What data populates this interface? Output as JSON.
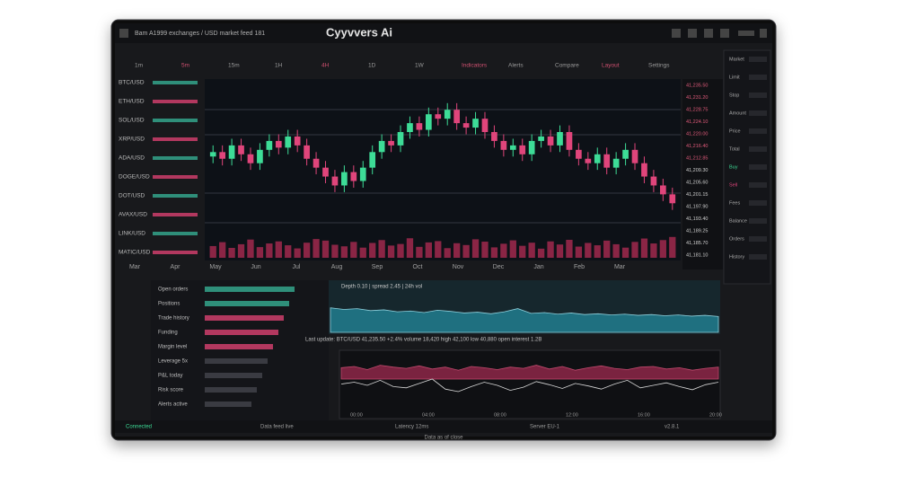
{
  "header": {
    "title": "Cyyvvers Ai",
    "breadcrumb": "Bam A1999 exchanges / USD market feed 181"
  },
  "toolbar": [
    "1m",
    "5m",
    "15m",
    "1H",
    "4H",
    "1D",
    "1W",
    "Indicators",
    "Alerts",
    "Compare",
    "Layout",
    "Settings"
  ],
  "sidebar": [
    "BTC/USD",
    "ETH/USD",
    "SOL/USD",
    "XRP/USD",
    "ADA/USD",
    "DOGE/USD",
    "DOT/USD",
    "AVAX/USD",
    "LINK/USD",
    "MATIC/USD"
  ],
  "chart": {
    "ylim": [
      20,
      85
    ],
    "candles": [
      [
        53,
        58,
        50,
        55
      ],
      [
        55,
        58,
        49,
        52
      ],
      [
        52,
        61,
        49,
        58
      ],
      [
        58,
        61,
        51,
        54
      ],
      [
        54,
        57,
        47,
        50
      ],
      [
        50,
        59,
        47,
        56
      ],
      [
        56,
        63,
        53,
        60
      ],
      [
        60,
        63,
        54,
        57
      ],
      [
        57,
        65,
        54,
        62
      ],
      [
        62,
        65,
        55,
        58
      ],
      [
        58,
        61,
        49,
        52
      ],
      [
        52,
        55,
        45,
        48
      ],
      [
        48,
        51,
        41,
        44
      ],
      [
        44,
        47,
        37,
        40
      ],
      [
        40,
        49,
        37,
        46
      ],
      [
        46,
        49,
        39,
        42
      ],
      [
        42,
        51,
        39,
        48
      ],
      [
        48,
        58,
        45,
        55
      ],
      [
        55,
        63,
        52,
        60
      ],
      [
        60,
        63,
        55,
        58
      ],
      [
        58,
        67,
        55,
        64
      ],
      [
        64,
        71,
        61,
        68
      ],
      [
        68,
        71,
        62,
        65
      ],
      [
        65,
        75,
        62,
        72
      ],
      [
        72,
        75,
        67,
        70
      ],
      [
        70,
        77,
        67,
        74
      ],
      [
        74,
        77,
        65,
        68
      ],
      [
        68,
        71,
        63,
        66
      ],
      [
        66,
        73,
        63,
        70
      ],
      [
        70,
        73,
        61,
        64
      ],
      [
        64,
        67,
        57,
        60
      ],
      [
        60,
        63,
        53,
        56
      ],
      [
        56,
        61,
        53,
        58
      ],
      [
        58,
        61,
        51,
        54
      ],
      [
        54,
        63,
        51,
        60
      ],
      [
        60,
        65,
        57,
        62
      ],
      [
        62,
        65,
        55,
        58
      ],
      [
        58,
        67,
        55,
        64
      ],
      [
        64,
        67,
        53,
        56
      ],
      [
        56,
        59,
        49,
        52
      ],
      [
        52,
        55,
        47,
        50
      ],
      [
        50,
        57,
        47,
        54
      ],
      [
        54,
        57,
        45,
        48
      ],
      [
        48,
        55,
        45,
        52
      ],
      [
        52,
        59,
        49,
        56
      ],
      [
        56,
        59,
        47,
        50
      ],
      [
        50,
        53,
        41,
        44
      ],
      [
        44,
        47,
        37,
        40
      ],
      [
        40,
        43,
        33,
        36
      ],
      [
        36,
        39,
        29,
        32
      ]
    ],
    "volume": [
      45,
      60,
      38,
      52,
      70,
      41,
      55,
      63,
      48,
      36,
      58,
      72,
      66,
      50,
      44,
      61,
      39,
      57,
      68,
      47,
      53,
      75,
      42,
      59,
      64,
      37,
      56,
      49,
      71,
      62,
      40,
      54,
      67,
      46,
      58,
      35,
      63,
      51,
      69,
      43,
      57,
      48,
      66,
      52,
      39,
      61,
      74,
      55,
      68,
      80
    ],
    "vlim": [
      0,
      100
    ],
    "xlabels": [
      "Mar",
      "Apr",
      "May",
      "Jun",
      "Jul",
      "Aug",
      "Sep",
      "Oct",
      "Nov",
      "Dec",
      "Jan",
      "Feb",
      "Mar"
    ]
  },
  "order_book": [
    "41,235.50",
    "41,231.20",
    "41,228.75",
    "41,224.10",
    "41,220.00",
    "41,216.40",
    "41,212.85",
    "41,209.30",
    "41,205.60",
    "41,201.15",
    "41,197.90",
    "41,193.40",
    "41,189.25",
    "41,185.70",
    "41,181.10"
  ],
  "side_panel": [
    "Market",
    "Limit",
    "Stop",
    "Amount",
    "Price",
    "Total",
    "Buy",
    "Sell",
    "Fees",
    "Balance",
    "Orders",
    "History"
  ],
  "lower_table": [
    "Open orders",
    "Positions",
    "Trade history",
    "Funding",
    "Margin level",
    "Leverage 5x",
    "P&L today",
    "Risk score",
    "Alerts active"
  ],
  "depth": {
    "title": "Depth 0.10 | spread 2.45 | 24h vol",
    "ylim": [
      0,
      100
    ],
    "values": [
      62,
      58,
      60,
      55,
      57,
      52,
      54,
      50,
      56,
      53,
      49,
      51,
      47,
      52,
      60,
      48,
      50,
      46,
      49,
      45,
      47,
      44,
      46,
      43,
      45,
      42,
      44,
      41,
      43,
      40
    ]
  },
  "info_strip": "Last update: BTC/USD 41,235.50  +2.4%  volume 18,420  high 42,100  low 40,880  open interest 1.2B",
  "oscillator": {
    "ylim": [
      0,
      100
    ],
    "area": [
      78,
      80,
      75,
      82,
      79,
      77,
      81,
      76,
      79,
      74,
      80,
      78,
      75,
      79,
      77,
      82,
      76,
      80,
      74,
      78,
      81,
      77,
      75,
      79,
      80,
      76,
      78,
      74,
      77,
      79
    ],
    "line": [
      52,
      55,
      50,
      58,
      48,
      46,
      53,
      60,
      44,
      40,
      48,
      55,
      50,
      42,
      47,
      56,
      51,
      45,
      53,
      49,
      44,
      52,
      58,
      46,
      50,
      54,
      48,
      43,
      51,
      55
    ]
  },
  "osc_labels": [
    "00:00",
    "04:00",
    "08:00",
    "12:00",
    "16:00",
    "20:00"
  ],
  "status": [
    "Connected",
    "Data feed live",
    "Latency 12ms",
    "Server EU-1",
    "v2.8.1"
  ],
  "caption": "Data as of close"
}
